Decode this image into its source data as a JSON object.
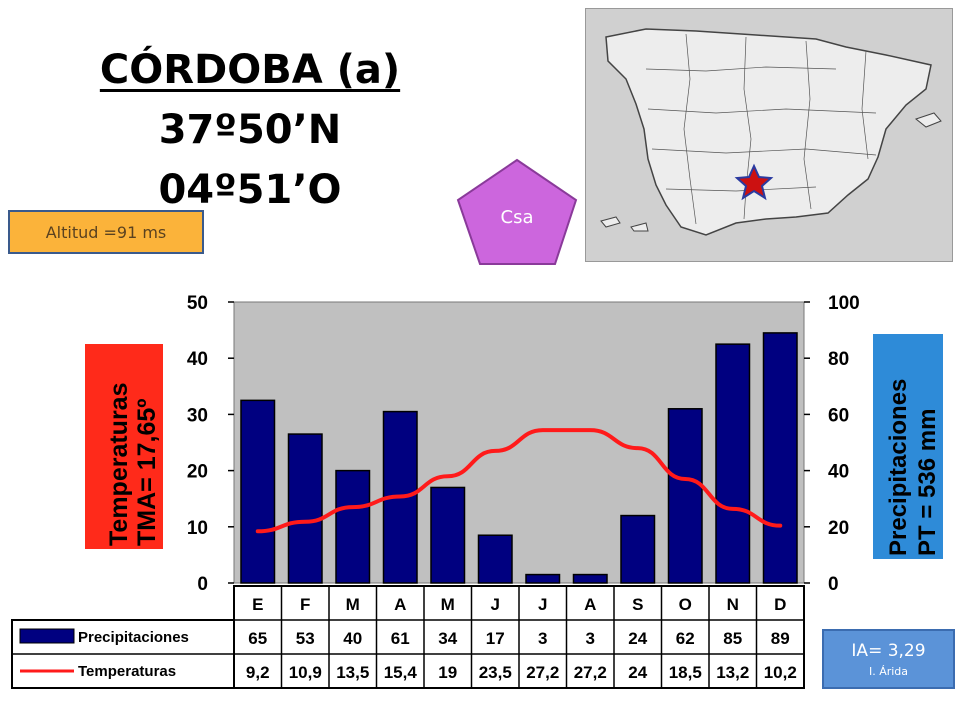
{
  "station": {
    "name": "CÓRDOBA (a)",
    "latitude": "37º50’N",
    "longitude": "04º51’O",
    "altitude": "Altitud =91 ms",
    "climate_code": "Csa",
    "aridity_index": "IA= 3,29",
    "aridity_label": "I. Árida"
  },
  "colors": {
    "bars": "#000080",
    "temperature_line": "#ff1a1a",
    "plot_bg": "#c0c0c0",
    "temp_label_bg": "#ff2a1a",
    "precip_label_bg": "#2e8bd8",
    "pentagon": "#cc66dd",
    "altitud_bg": "#fbb33a",
    "ia_bg": "#5b93d8"
  },
  "map": {
    "star_color": "#cc1111",
    "star_outline": "#2a3aa0"
  },
  "chart_data": {
    "type": "bar",
    "categories": [
      "E",
      "F",
      "M",
      "A",
      "M",
      "J",
      "J",
      "A",
      "S",
      "O",
      "N",
      "D"
    ],
    "series": [
      {
        "name": "Precipitaciones",
        "type": "bar",
        "axis": "right",
        "values": [
          65,
          53,
          40,
          61,
          34,
          17,
          3,
          3,
          24,
          62,
          85,
          89
        ]
      },
      {
        "name": "Temperaturas",
        "type": "line",
        "axis": "left",
        "values": [
          9.2,
          10.9,
          13.5,
          15.4,
          19,
          23.5,
          27.2,
          27.2,
          24,
          18.5,
          13.2,
          10.2
        ]
      }
    ],
    "table": {
      "precip_text": [
        "65",
        "53",
        "40",
        "61",
        "34",
        "17",
        "3",
        "3",
        "24",
        "62",
        "85",
        "89"
      ],
      "temp_text": [
        "9,2",
        "10,9",
        "13,5",
        "15,4",
        "19",
        "23,5",
        "27,2",
        "27,2",
        "24",
        "18,5",
        "13,2",
        "10,2"
      ]
    },
    "y_left": {
      "label_lines": [
        "Temperaturas",
        "TMA= 17,65º"
      ],
      "lim": [
        0,
        50
      ],
      "ticks": [
        "0",
        "10",
        "20",
        "30",
        "40",
        "50"
      ]
    },
    "y_right": {
      "label_lines": [
        "Precipitaciones",
        "PT = 536 mm"
      ],
      "lim": [
        0,
        100
      ],
      "ticks": [
        "0",
        "20",
        "40",
        "60",
        "80",
        "100"
      ]
    },
    "grid": false,
    "legend": "table-left"
  }
}
